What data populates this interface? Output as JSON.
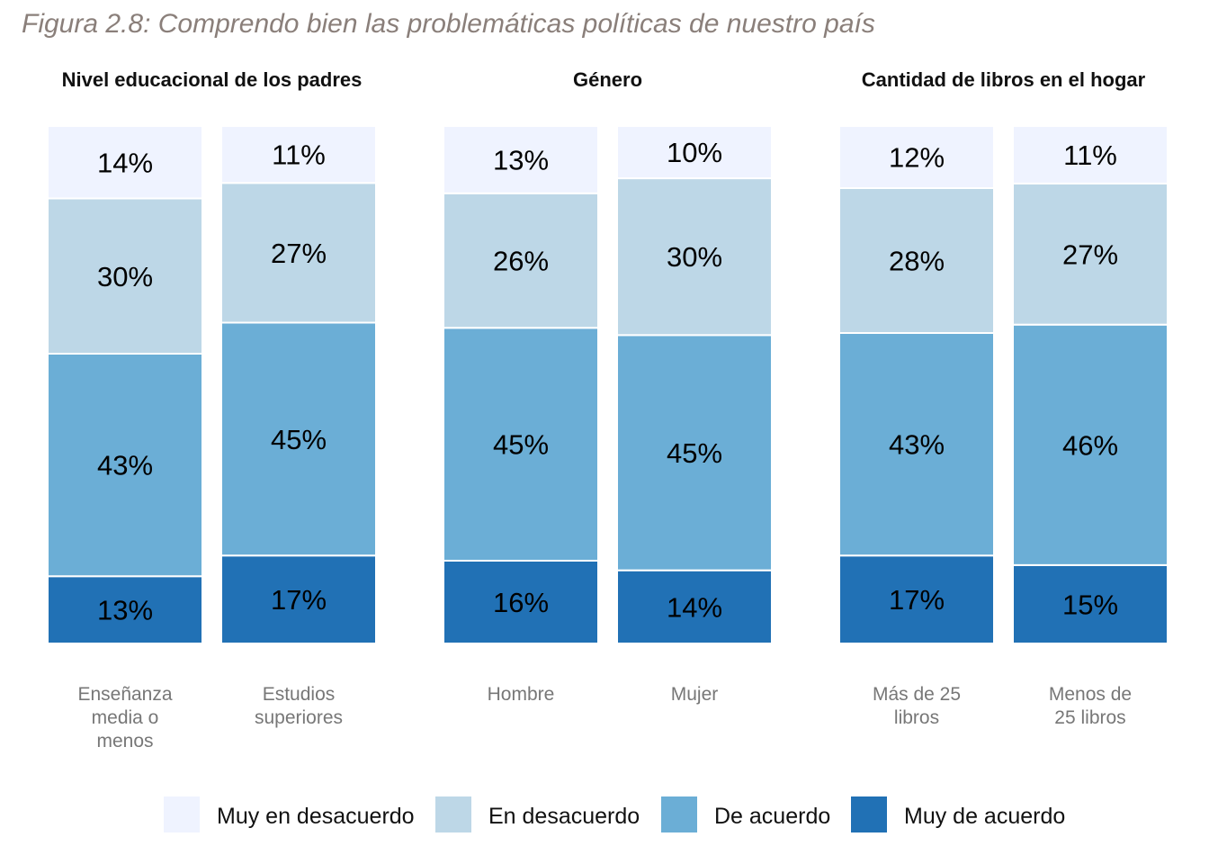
{
  "title": "Figura 2.8: Comprendo bien las problemáticas políticas de nuestro país",
  "chart_data": {
    "type": "bar",
    "stacked": true,
    "stack_order": "bottom-to-top: Muy de acuerdo, De acuerdo, En desacuerdo, Muy en desacuerdo",
    "legend_position": "bottom",
    "grid": false,
    "colors": {
      "Muy en desacuerdo": "#eff3ff",
      "En desacuerdo": "#bdd7e7",
      "De acuerdo": "#6baed6",
      "Muy de acuerdo": "#2171b5"
    },
    "legend": [
      "Muy en desacuerdo",
      "En desacuerdo",
      "De acuerdo",
      "Muy de acuerdo"
    ],
    "panels": [
      {
        "title": "Nivel educacional de los padres",
        "categories": [
          {
            "label": [
              "Enseñanza",
              "media o",
              "menos"
            ],
            "values": {
              "Muy de acuerdo": 13,
              "De acuerdo": 43,
              "En desacuerdo": 30,
              "Muy en desacuerdo": 14
            },
            "labels": {
              "Muy de acuerdo": "13%",
              "De acuerdo": "43%",
              "En desacuerdo": "30%",
              "Muy en desacuerdo": "14%"
            }
          },
          {
            "label": [
              "Estudios",
              "superiores"
            ],
            "values": {
              "Muy de acuerdo": 17,
              "De acuerdo": 45,
              "En desacuerdo": 27,
              "Muy en desacuerdo": 11
            },
            "labels": {
              "Muy de acuerdo": "17%",
              "De acuerdo": "45%",
              "En desacuerdo": "27%",
              "Muy en desacuerdo": "11%"
            }
          }
        ]
      },
      {
        "title": "Género",
        "categories": [
          {
            "label": [
              "Hombre"
            ],
            "values": {
              "Muy de acuerdo": 16,
              "De acuerdo": 45,
              "En desacuerdo": 26,
              "Muy en desacuerdo": 13
            },
            "labels": {
              "Muy de acuerdo": "16%",
              "De acuerdo": "45%",
              "En desacuerdo": "26%",
              "Muy en desacuerdo": "13%"
            }
          },
          {
            "label": [
              "Mujer"
            ],
            "values": {
              "Muy de acuerdo": 14,
              "De acuerdo": 45,
              "En desacuerdo": 30,
              "Muy en desacuerdo": 10
            },
            "labels": {
              "Muy de acuerdo": "14%",
              "De acuerdo": "45%",
              "En desacuerdo": "30%",
              "Muy en desacuerdo": "10%"
            }
          }
        ]
      },
      {
        "title": "Cantidad de libros en el hogar",
        "categories": [
          {
            "label": [
              "Más de 25",
              "libros"
            ],
            "values": {
              "Muy de acuerdo": 17,
              "De acuerdo": 43,
              "En desacuerdo": 28,
              "Muy en desacuerdo": 12
            },
            "labels": {
              "Muy de acuerdo": "17%",
              "De acuerdo": "43%",
              "En desacuerdo": "28%",
              "Muy en desacuerdo": "12%"
            }
          },
          {
            "label": [
              "Menos de",
              "25 libros"
            ],
            "values": {
              "Muy de acuerdo": 15,
              "De acuerdo": 46,
              "En desacuerdo": 27,
              "Muy en desacuerdo": 11
            },
            "labels": {
              "Muy de acuerdo": "15%",
              "De acuerdo": "46%",
              "En desacuerdo": "27%",
              "Muy en desacuerdo": "11%"
            }
          }
        ]
      }
    ]
  }
}
